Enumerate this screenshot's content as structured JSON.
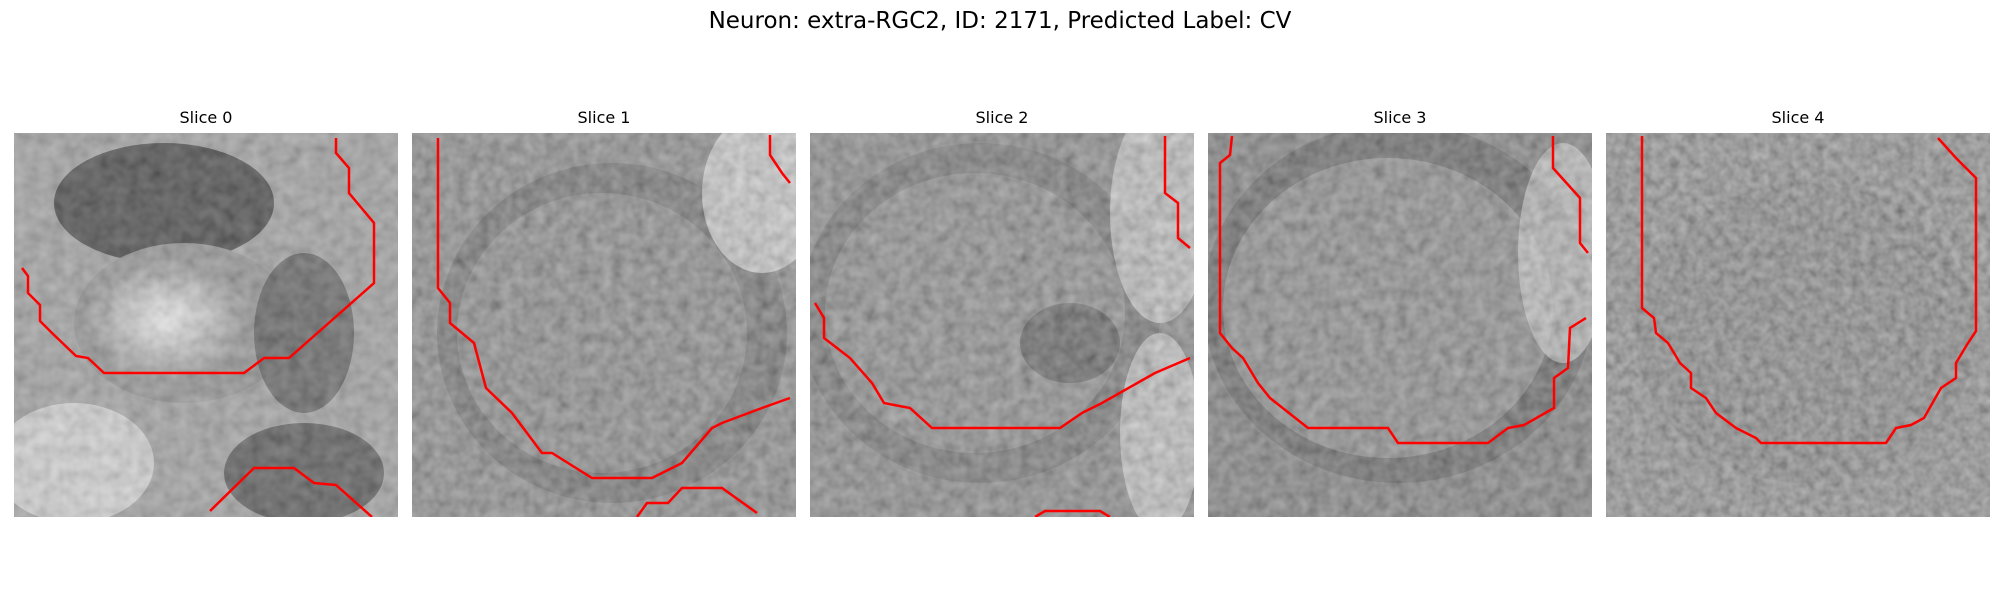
{
  "figure": {
    "title": "Neuron: extra-RGC2, ID: 2171, Predicted Label: CV"
  },
  "panels": [
    {
      "title": "Slice 0"
    },
    {
      "title": "Slice 1"
    },
    {
      "title": "Slice 2"
    },
    {
      "title": "Slice 3"
    },
    {
      "title": "Slice 4"
    }
  ],
  "colors": {
    "contour": "#ff0000",
    "background": "#ffffff"
  }
}
